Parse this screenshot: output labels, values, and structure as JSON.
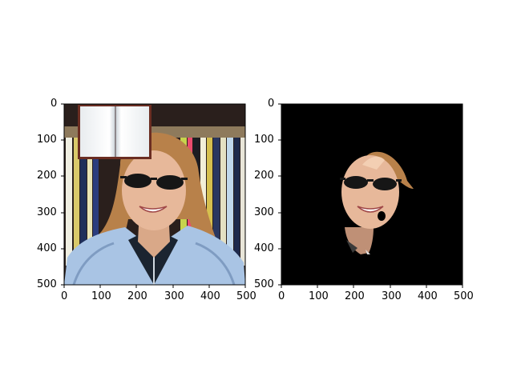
{
  "panels": [
    {
      "name": "original-image",
      "x_ticks": [
        "0",
        "100",
        "200",
        "300",
        "400",
        "500"
      ],
      "y_ticks": [
        "0",
        "100",
        "200",
        "300",
        "400",
        "500"
      ]
    },
    {
      "name": "segmented-image",
      "x_ticks": [
        "0",
        "100",
        "200",
        "300",
        "400",
        "500"
      ],
      "y_ticks": [
        "0",
        "100",
        "200",
        "300",
        "400",
        "500"
      ]
    }
  ],
  "colors": {
    "hair": "#b8814a",
    "skin": "#e7b89a",
    "jacket": "#a9c4e4",
    "mask_background": "#000000"
  },
  "icons": [
    "open-book-icon"
  ]
}
